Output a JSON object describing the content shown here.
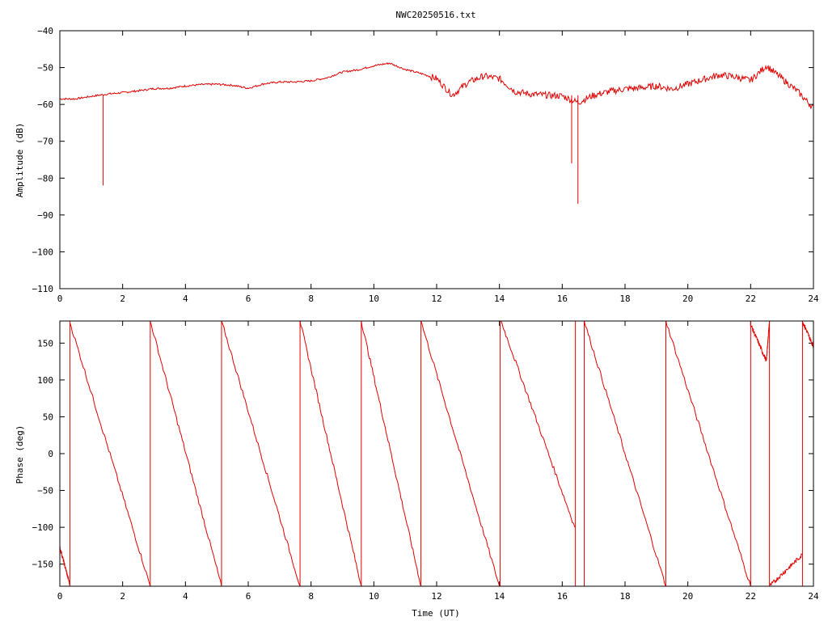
{
  "title": "NWC20250516.txt",
  "colors": {
    "trace": "#e00000",
    "axis": "#000000",
    "background": "#ffffff"
  },
  "chart_data": [
    {
      "type": "line",
      "title": "NWC20250516.txt",
      "xlabel": "",
      "ylabel": "Amplitude (dB)",
      "xlim": [
        0,
        24
      ],
      "ylim": [
        -110,
        -40
      ],
      "xticks": [
        0,
        2,
        4,
        6,
        8,
        10,
        12,
        14,
        16,
        18,
        20,
        22,
        24
      ],
      "yticks": [
        -40,
        -50,
        -60,
        -70,
        -80,
        -90,
        -100,
        -110
      ],
      "xtick_labels": [
        "0",
        "2",
        "4",
        "6",
        "8",
        "10",
        "12",
        "14",
        "16",
        "18",
        "20",
        "22",
        "24"
      ],
      "ytick_labels": [
        "−40",
        "−50",
        "−60",
        "−70",
        "−80",
        "−90",
        "−100",
        "−110"
      ],
      "grid": false,
      "series": [
        {
          "x": [
            0,
            0.5,
            1,
            1.5,
            2,
            2.5,
            3,
            3.5,
            4,
            4.5,
            5,
            5.5,
            6,
            6.5,
            7,
            7.5,
            8,
            8.5,
            9,
            9.5,
            10,
            10.5,
            11,
            11.5,
            12,
            12.5,
            13,
            13.5,
            14,
            14.5,
            15,
            15.5,
            16,
            16.5,
            17,
            17.5,
            18,
            18.5,
            19,
            19.5,
            20,
            20.5,
            21,
            21.5,
            22,
            22.5,
            23,
            23.5,
            24
          ],
          "y": [
            -58.5,
            -58.5,
            -57.8,
            -57.2,
            -56.8,
            -56.3,
            -55.7,
            -55.6,
            -55.0,
            -54.6,
            -54.5,
            -54.8,
            -55.6,
            -54.4,
            -53.9,
            -53.9,
            -53.6,
            -52.8,
            -51.2,
            -50.6,
            -49.5,
            -48.8,
            -50.5,
            -51.6,
            -53.0,
            -57.5,
            -54.0,
            -52.3,
            -53.0,
            -56.5,
            -57.2,
            -57.5,
            -57.7,
            -59.5,
            -57.5,
            -56.5,
            -55.8,
            -55.5,
            -55.0,
            -55.8,
            -54.5,
            -53.2,
            -52.0,
            -52.5,
            -53.5,
            -49.5,
            -53.0,
            -56.5,
            -61.0
          ]
        }
      ],
      "spikes": [
        {
          "x": 1.38,
          "y": -82
        },
        {
          "x": 16.3,
          "y": -76
        },
        {
          "x": 16.5,
          "y": -87
        }
      ]
    },
    {
      "type": "line",
      "title": "",
      "xlabel": "Time (UT)",
      "ylabel": "Phase (deg)",
      "xlim": [
        0,
        24
      ],
      "ylim": [
        -180,
        180
      ],
      "xticks": [
        0,
        2,
        4,
        6,
        8,
        10,
        12,
        14,
        16,
        18,
        20,
        22,
        24
      ],
      "yticks": [
        150,
        100,
        50,
        0,
        -50,
        -100,
        -150
      ],
      "xtick_labels": [
        "0",
        "2",
        "4",
        "6",
        "8",
        "10",
        "12",
        "14",
        "16",
        "18",
        "20",
        "22",
        "24"
      ],
      "ytick_labels": [
        "150",
        "100",
        "50",
        "0",
        "−50",
        "−100",
        "−150"
      ],
      "grid": false,
      "series": [
        {
          "segments": [
            {
              "x": [
                0,
                0.32
              ],
              "y": [
                -127,
                -178
              ]
            },
            {
              "x": [
                0.32,
                2.88
              ],
              "y": [
                178,
                -180
              ]
            },
            {
              "x": [
                2.88,
                5.15
              ],
              "y": [
                180,
                -180
              ]
            },
            {
              "x": [
                5.15,
                7.65
              ],
              "y": [
                180,
                -180
              ]
            },
            {
              "x": [
                7.65,
                9.6
              ],
              "y": [
                180,
                -180
              ]
            },
            {
              "x": [
                9.6,
                11.5
              ],
              "y": [
                180,
                -180
              ]
            },
            {
              "x": [
                11.5,
                14.0
              ],
              "y": [
                180,
                -180
              ]
            },
            {
              "x": [
                14.05,
                16.4
              ],
              "y": [
                180,
                -100
              ]
            },
            {
              "x": [
                16.7,
                19.3
              ],
              "y": [
                180,
                -180
              ]
            },
            {
              "x": [
                19.3,
                22.0
              ],
              "y": [
                180,
                -180
              ]
            },
            {
              "x": [
                22.0,
                22.5
              ],
              "y": [
                175,
                126
              ]
            },
            {
              "x": [
                22.5,
                22.6
              ],
              "y": [
                126,
                180
              ]
            },
            {
              "x": [
                22.6,
                23.65
              ],
              "y": [
                -180,
                -137
              ]
            },
            {
              "x": [
                23.65,
                24
              ],
              "y": [
                180,
                145
              ]
            }
          ]
        }
      ],
      "wrap_lines_x": [
        0.32,
        2.88,
        5.15,
        7.65,
        9.6,
        11.5,
        14.02,
        16.42,
        16.7,
        19.3,
        22.0,
        22.6,
        23.65
      ]
    }
  ]
}
